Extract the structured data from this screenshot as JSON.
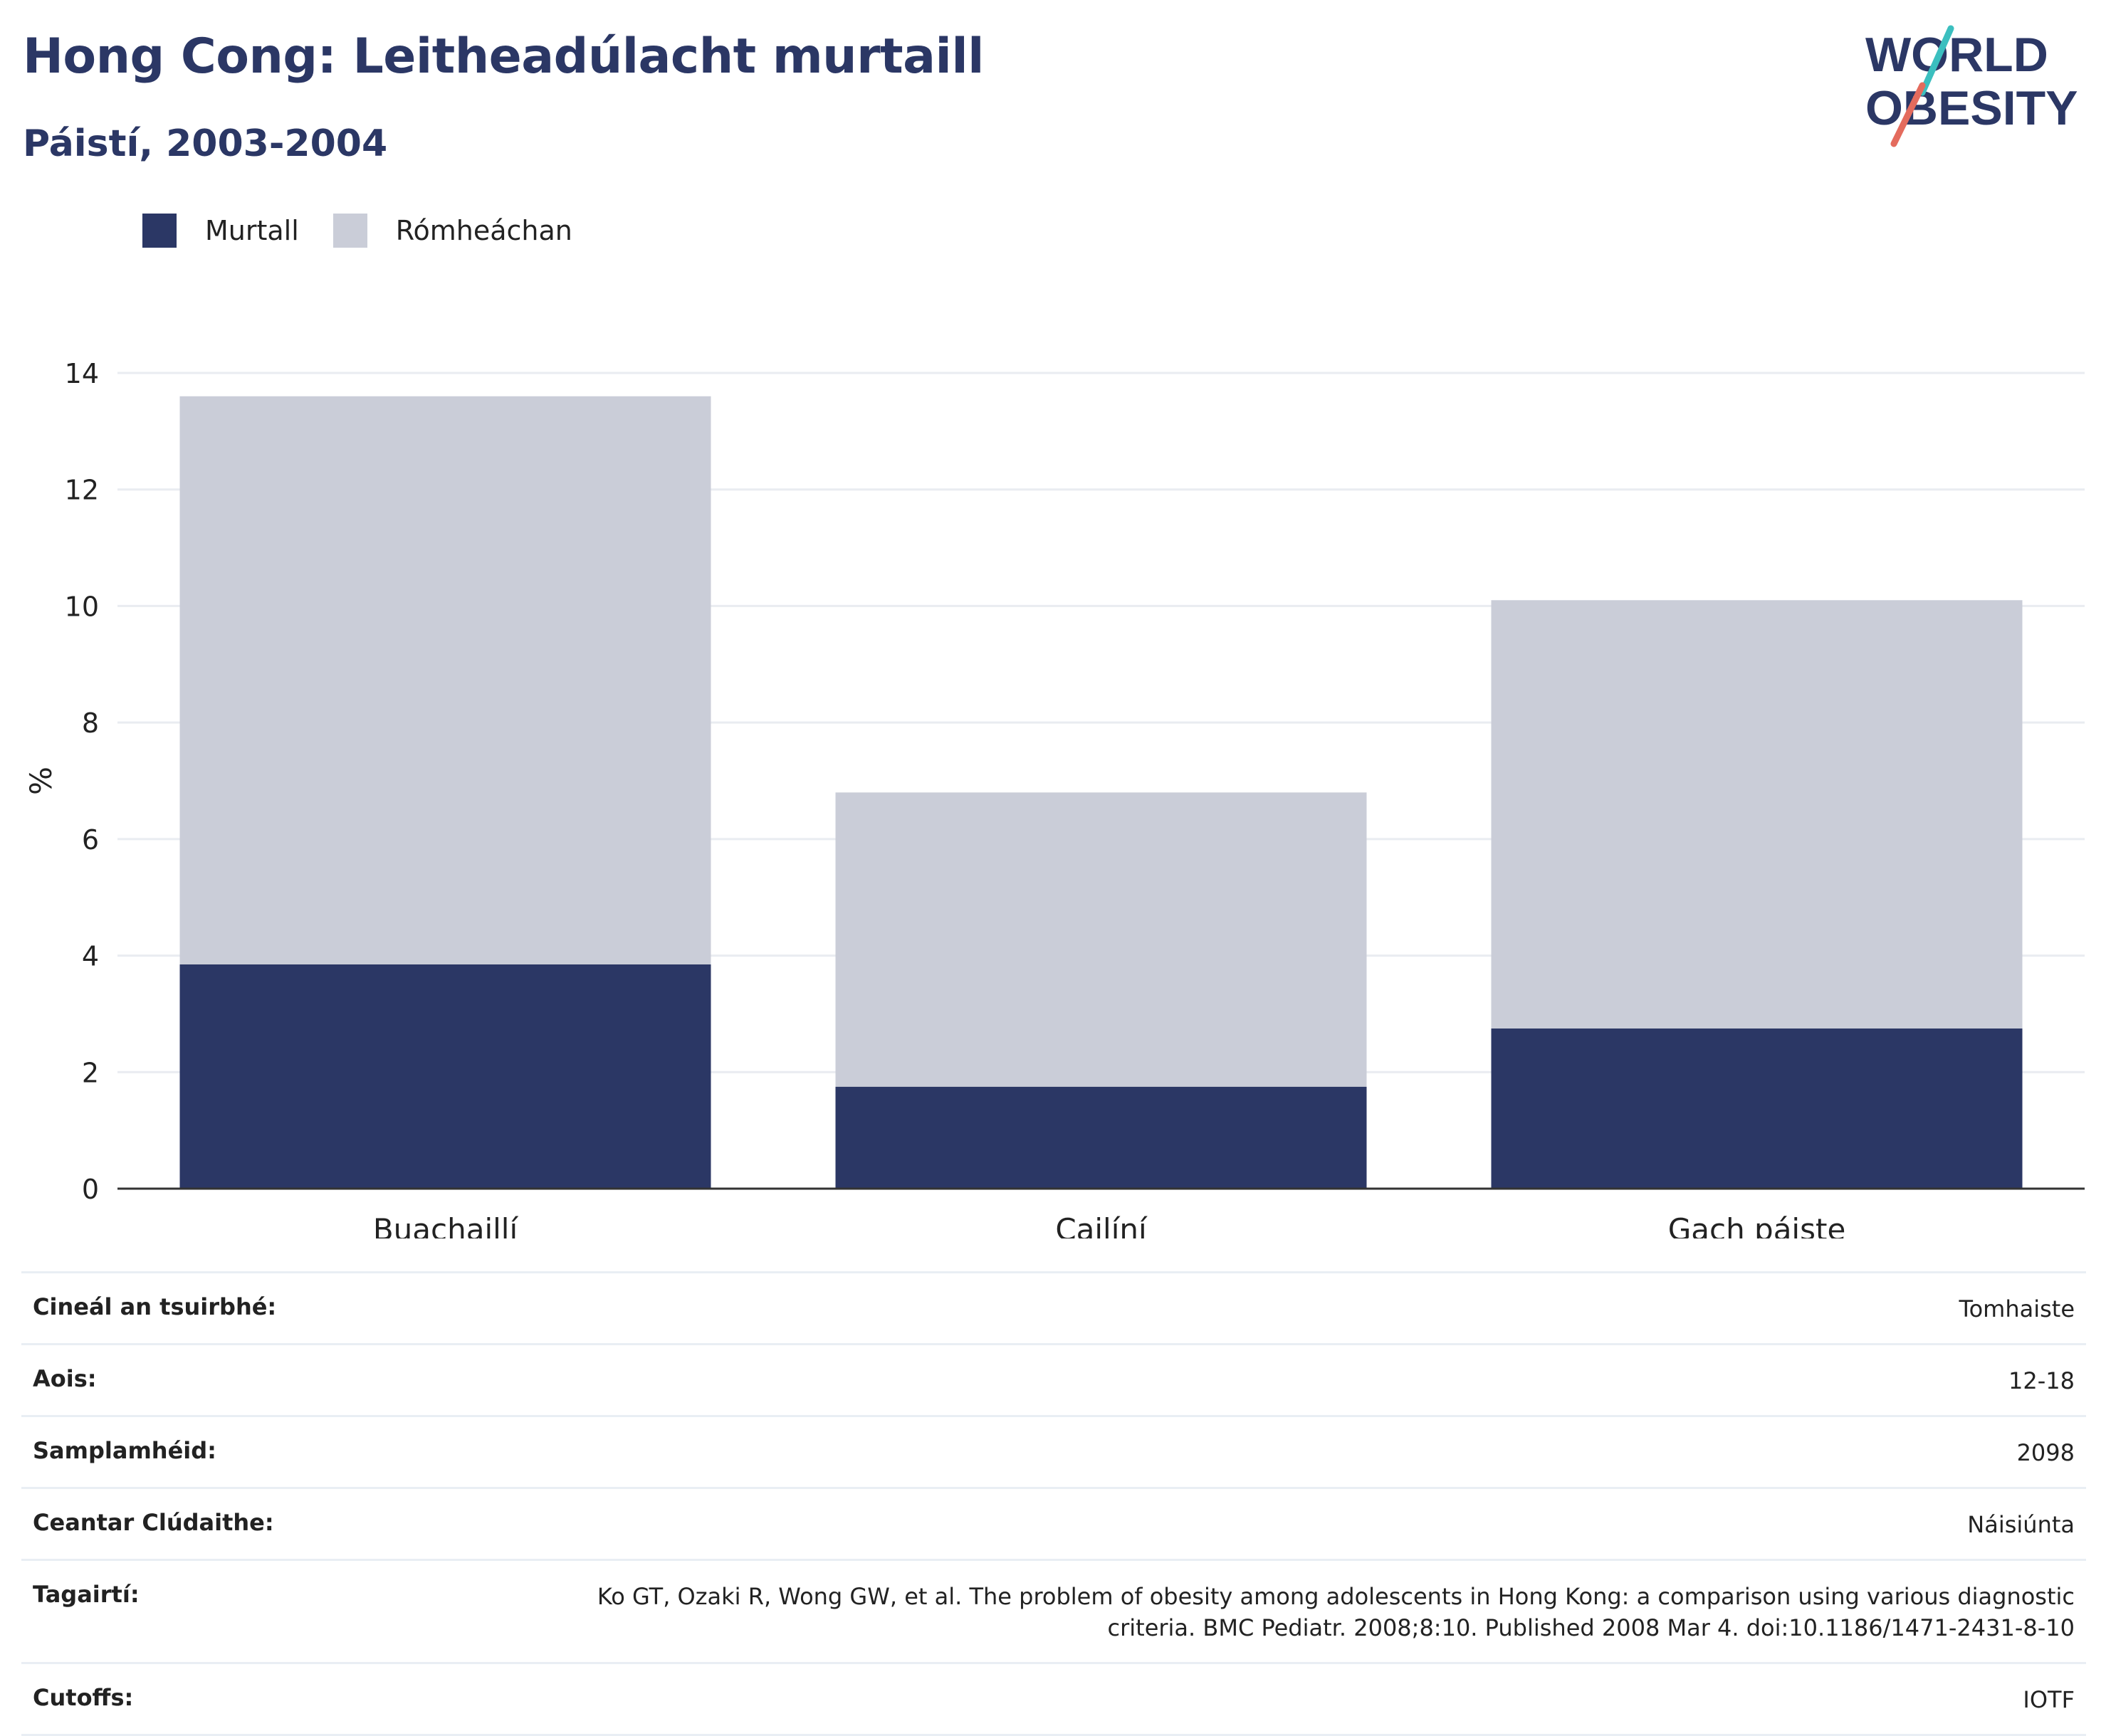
{
  "header": {
    "title": "Hong Cong: Leitheadúlacht murtaill",
    "subtitle": "Páistí, 2003-2004"
  },
  "logo": {
    "line1": "WORLD",
    "line2": "OBESITY",
    "colors": {
      "text": "#2b3765",
      "slash_top": "#3bbfbf",
      "slash_bottom": "#e46b5d"
    }
  },
  "legend": {
    "items": [
      {
        "label": "Murtall",
        "color": "#2b3765"
      },
      {
        "label": "Rómheáchan",
        "color": "#cacdd8"
      }
    ]
  },
  "chart_data": {
    "type": "bar",
    "stacked": true,
    "categories": [
      "Buachaillí",
      "Cailíní",
      "Gach páiste"
    ],
    "series": [
      {
        "name": "Murtall",
        "color": "#2b3765",
        "values": [
          3.85,
          1.75,
          2.75
        ]
      },
      {
        "name": "Rómheáchan",
        "color": "#cacdd8",
        "values": [
          9.75,
          5.05,
          7.35
        ]
      }
    ],
    "ylabel": "%",
    "xlabel": "",
    "ylim": [
      0,
      14
    ],
    "yticks": [
      0,
      2,
      4,
      6,
      8,
      10,
      12,
      14
    ],
    "grid": true,
    "legend_position": "top-left"
  },
  "metadata": {
    "rows": [
      {
        "label": "Cineál an tsuirbhé:",
        "value": "Tomhaiste"
      },
      {
        "label": "Aois:",
        "value": "12-18"
      },
      {
        "label": "Samplamhéid:",
        "value": "2098"
      },
      {
        "label": "Ceantar Clúdaithe:",
        "value": "Náisiúnta"
      },
      {
        "label": "Tagairtí:",
        "value": "Ko GT, Ozaki R, Wong GW, et al. The problem of obesity among adolescents in Hong Kong: a comparison using various diagnostic criteria. BMC Pediatr. 2008;8:10. Published 2008 Mar 4. doi:10.1186/1471-2431-8-10"
      },
      {
        "label": "Cutoffs:",
        "value": "IOTF"
      }
    ]
  }
}
